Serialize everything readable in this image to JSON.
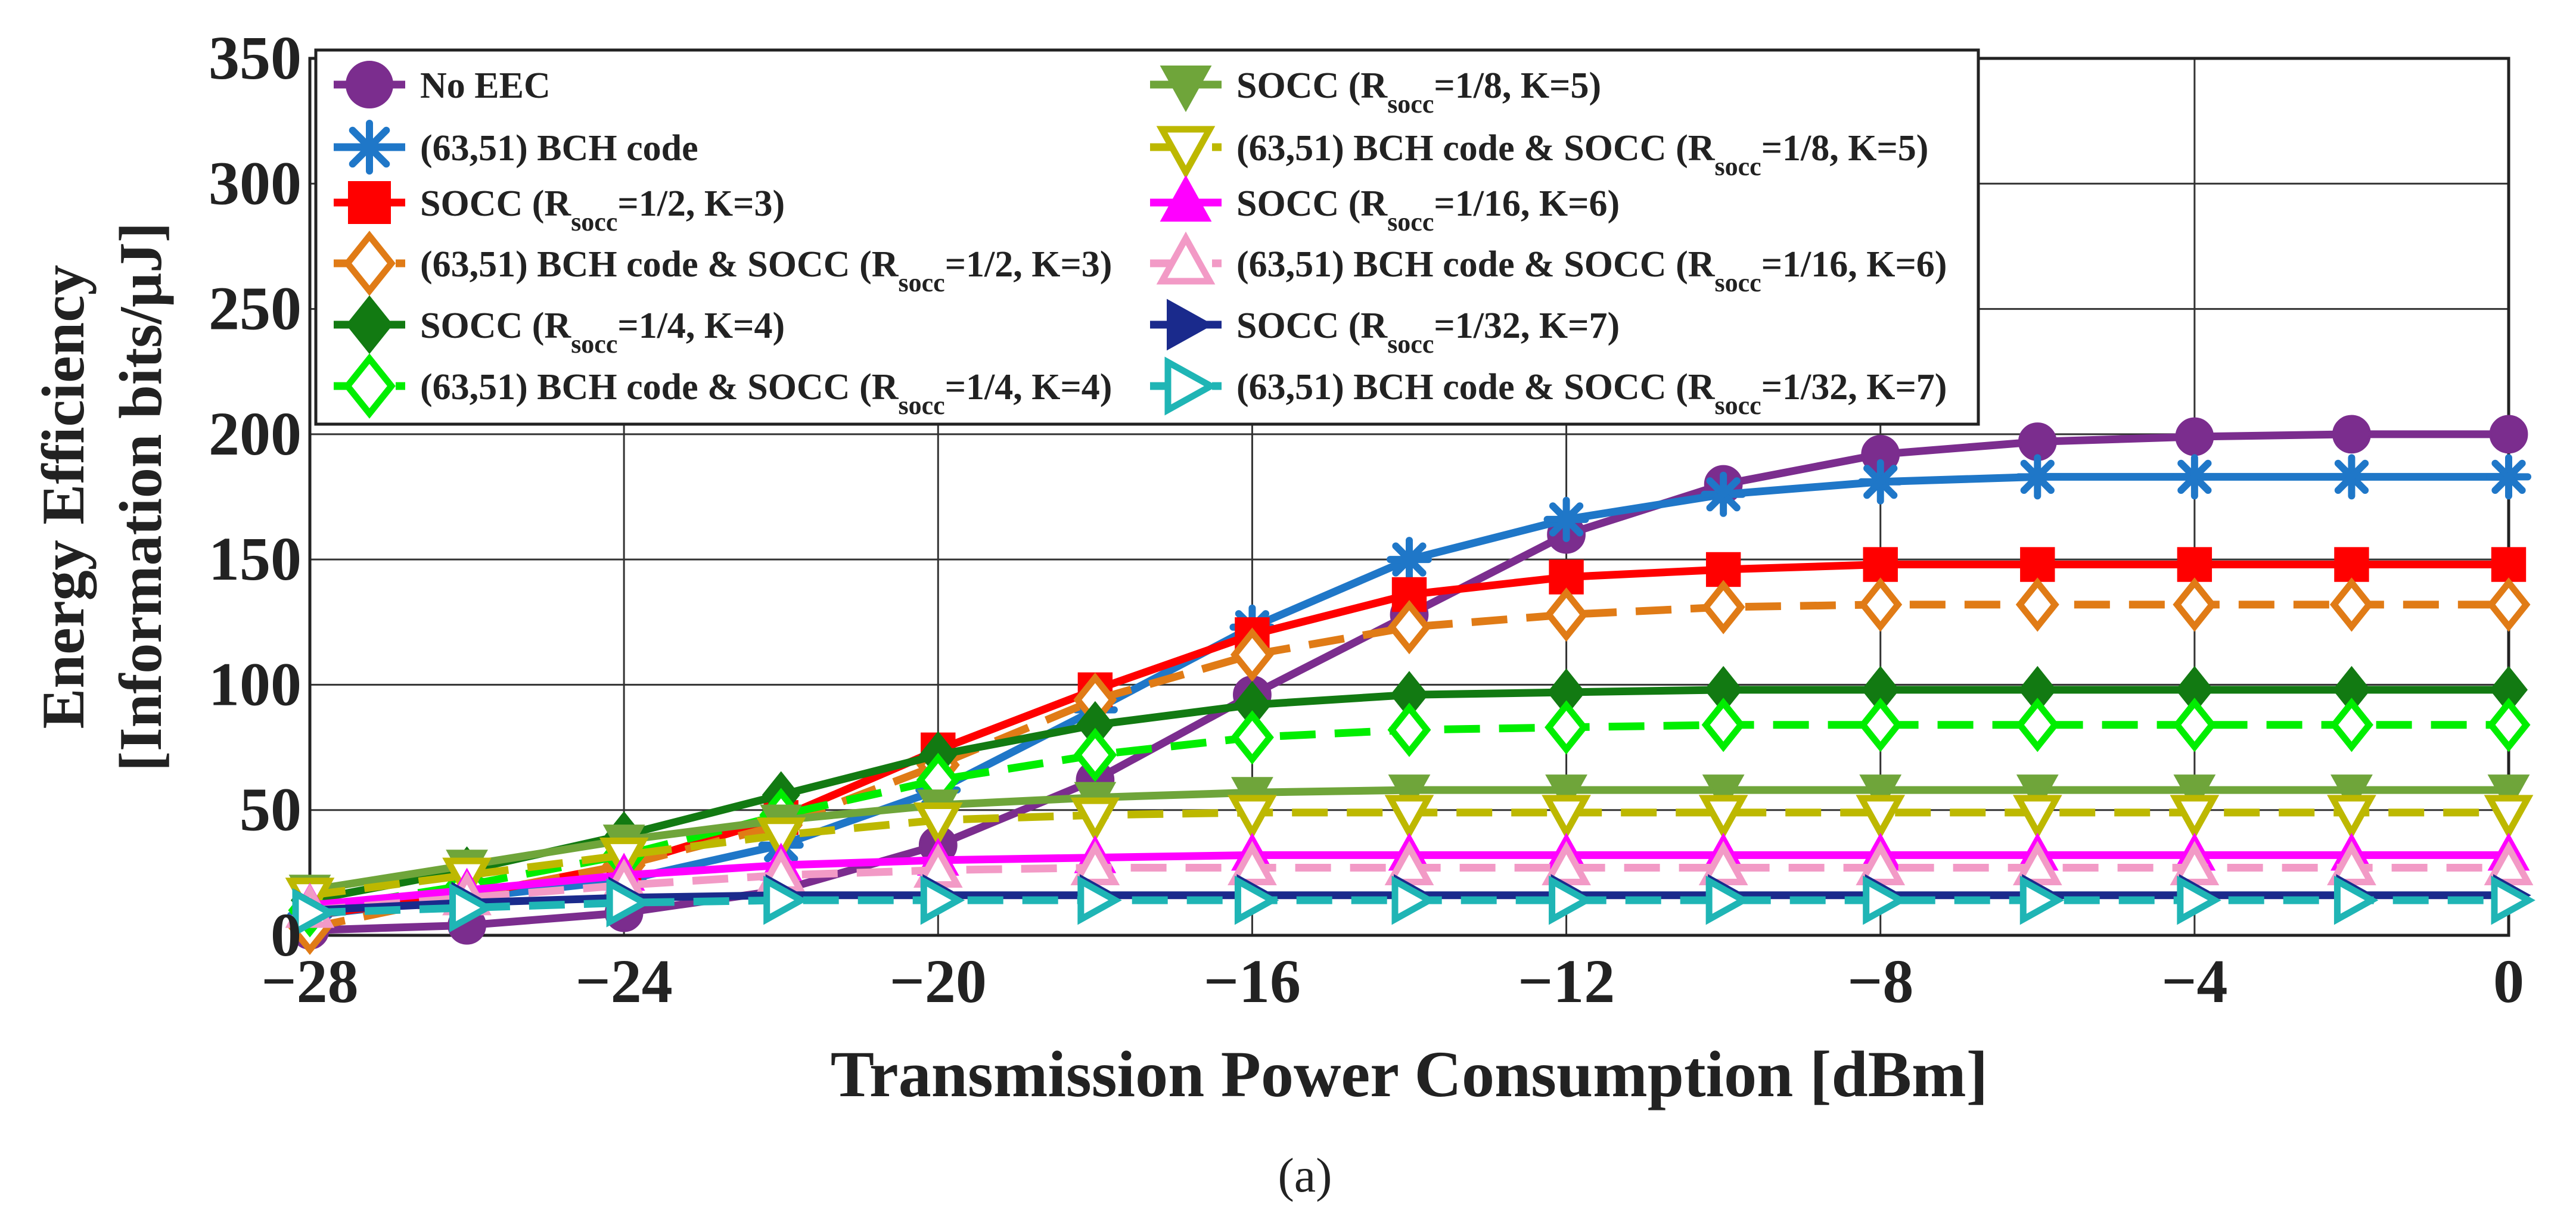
{
  "chart_data": {
    "type": "line",
    "xlabel": "Transmission Power Consumption [dBm]",
    "ylabel_line1": "Energy Efficiency",
    "ylabel_line2": "[Information bits/μJ]",
    "caption": "(a)",
    "xlim": [
      -28,
      0
    ],
    "ylim": [
      0,
      350
    ],
    "xticks": [
      -28,
      -24,
      -20,
      -16,
      -12,
      -8,
      -4,
      0
    ],
    "yticks": [
      0,
      50,
      100,
      150,
      200,
      250,
      300,
      350
    ],
    "xtick_labels": [
      "−28",
      "−24",
      "−20",
      "−16",
      "−12",
      "−8",
      "−4",
      "0"
    ],
    "ytick_labels": [
      "0",
      "50",
      "100",
      "150",
      "200",
      "250",
      "300",
      "350"
    ],
    "grid": true,
    "legend_position": "top-left",
    "x": [
      -28,
      -26,
      -24,
      -22,
      -20,
      -18,
      -16,
      -14,
      -12,
      -10,
      -8,
      -6,
      -4,
      -2,
      0
    ],
    "series": [
      {
        "name": "No EEC",
        "legend": {
          "pre": "No EEC"
        },
        "color": "#7b2d8e",
        "dash": false,
        "marker": "circle",
        "filled": true,
        "values": [
          2,
          4,
          9,
          18,
          36,
          62,
          96,
          128,
          160,
          180,
          192,
          197,
          199,
          200,
          200
        ]
      },
      {
        "name": "(63,51) BCH code",
        "legend": {
          "pre": "(63,51) BCH code"
        },
        "color": "#1f77c8",
        "dash": false,
        "marker": "asterisk",
        "filled": true,
        "values": [
          8,
          15,
          22,
          36,
          58,
          90,
          123,
          150,
          166,
          176,
          181,
          183,
          183,
          183,
          183
        ]
      },
      {
        "name": "SOCC (Rsocc=1/2, K=3)",
        "legend": {
          "pre": "SOCC (R",
          "sub": "socc",
          "post": "=1/2, K=3)"
        },
        "color": "#ff0000",
        "dash": false,
        "marker": "square",
        "filled": true,
        "values": [
          8,
          16,
          28,
          47,
          74,
          98,
          120,
          136,
          143,
          146,
          148,
          148,
          148,
          148,
          148
        ]
      },
      {
        "name": "(63,51) BCH code & SOCC (Rsocc=1/2, K=3)",
        "legend": {
          "pre": "(63,51) BCH code & SOCC (R",
          "sub": "socc",
          "post": "=1/2, K=3)"
        },
        "color": "#e07b16",
        "dash": true,
        "marker": "diamond",
        "filled": false,
        "values": [
          3,
          16,
          28,
          44,
          68,
          94,
          112,
          123,
          128,
          131,
          132,
          132,
          132,
          132,
          132
        ]
      },
      {
        "name": "SOCC (Rsocc=1/4, K=4)",
        "legend": {
          "pre": "SOCC (R",
          "sub": "socc",
          "post": "=1/4, K=4)"
        },
        "color": "#127a12",
        "dash": false,
        "marker": "diamond",
        "filled": true,
        "values": [
          14,
          26,
          40,
          56,
          72,
          84,
          92,
          96,
          97,
          98,
          98,
          98,
          98,
          98,
          98
        ]
      },
      {
        "name": "(63,51) BCH code & SOCC (Rsocc=1/4, K=4)",
        "legend": {
          "pre": "(63,51) BCH code & SOCC (R",
          "sub": "socc",
          "post": "=1/4, K=4)"
        },
        "color": "#00ee00",
        "dash": true,
        "marker": "diamond",
        "filled": false,
        "values": [
          10,
          20,
          32,
          48,
          62,
          72,
          79,
          82,
          83,
          84,
          84,
          84,
          84,
          84,
          84
        ]
      },
      {
        "name": "SOCC (Rsocc=1/8, K=5)",
        "legend": {
          "pre": "SOCC (R",
          "sub": "socc",
          "post": "=1/8, K=5)"
        },
        "color": "#6fa53a",
        "dash": false,
        "marker": "triangle-down",
        "filled": true,
        "values": [
          18,
          28,
          38,
          46,
          52,
          55,
          57,
          58,
          58,
          58,
          58,
          58,
          58,
          58,
          58
        ]
      },
      {
        "name": "(63,51) BCH code & SOCC (Rsocc=1/8, K=5)",
        "legend": {
          "pre": "(63,51) BCH code & SOCC (R",
          "sub": "socc",
          "post": "=1/8, K=5)"
        },
        "color": "#bdb800",
        "dash": true,
        "marker": "triangle-down",
        "filled": false,
        "values": [
          16,
          24,
          32,
          40,
          46,
          48,
          49,
          49,
          49,
          49,
          49,
          49,
          49,
          49,
          49
        ]
      },
      {
        "name": "SOCC (Rsocc=1/16, K=6)",
        "legend": {
          "pre": "SOCC (R",
          "sub": "socc",
          "post": "=1/16, K=6)"
        },
        "color": "#ff00ff",
        "dash": false,
        "marker": "triangle-up",
        "filled": true,
        "values": [
          12,
          18,
          24,
          28,
          30,
          31,
          32,
          32,
          32,
          32,
          32,
          32,
          32,
          32,
          32
        ]
      },
      {
        "name": "(63,51) BCH code & SOCC (Rsocc=1/16, K=6)",
        "legend": {
          "pre": "(63,51) BCH code & SOCC (R",
          "sub": "socc",
          "post": "=1/16, K=6)"
        },
        "color": "#f29ac6",
        "dash": true,
        "marker": "triangle-up",
        "filled": false,
        "values": [
          10,
          15,
          20,
          24,
          26,
          27,
          27,
          27,
          27,
          27,
          27,
          27,
          27,
          27,
          27
        ]
      },
      {
        "name": "SOCC (Rsocc=1/32, K=7)",
        "legend": {
          "pre": "SOCC (R",
          "sub": "socc",
          "post": "=1/32, K=7)"
        },
        "color": "#1a2a8c",
        "dash": false,
        "marker": "triangle-right",
        "filled": true,
        "values": [
          10,
          13,
          15,
          16,
          16,
          16,
          16,
          16,
          16,
          16,
          16,
          16,
          16,
          16,
          16
        ]
      },
      {
        "name": "(63,51) BCH code & SOCC (Rsocc=1/32, K=7)",
        "legend": {
          "pre": "(63,51) BCH code & SOCC (R",
          "sub": "socc",
          "post": "=1/32, K=7)"
        },
        "color": "#1fb5b5",
        "dash": true,
        "marker": "triangle-right",
        "filled": false,
        "values": [
          9,
          11,
          13,
          14,
          14,
          14,
          14,
          14,
          14,
          14,
          14,
          14,
          14,
          14,
          14
        ]
      }
    ]
  }
}
